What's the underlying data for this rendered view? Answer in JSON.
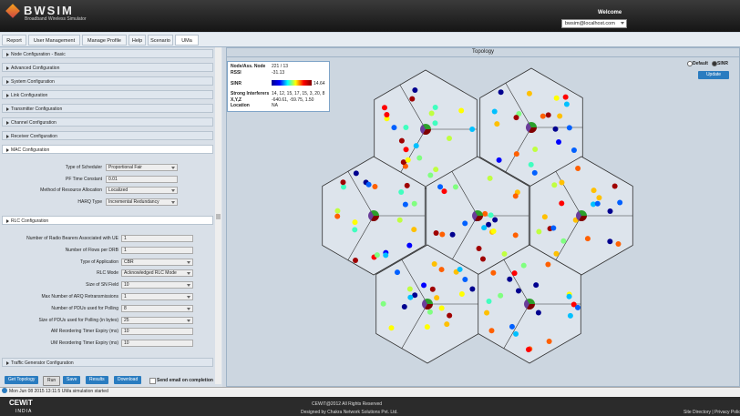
{
  "header": {
    "logo": "BWSIM",
    "subtitle": "Broadband Wireless Simulator",
    "welcome": "Welcome",
    "user": "bwsim@localhost.com"
  },
  "tabs": [
    "Report",
    "User Management",
    "Manage Profile",
    "Help",
    "Scenario",
    "UMa"
  ],
  "sections": [
    "Node Configuration - Basic",
    "Advanced Configuration",
    "System Configuration",
    "Link Configuration",
    "Transmitter Configuration",
    "Channel Configuration",
    "Receiver Configuration"
  ],
  "mac": {
    "title": "MAC Configuration",
    "fields": [
      {
        "label": "Type of Scheduler",
        "value": "Proportional Fair"
      },
      {
        "label": "PF Time Constant",
        "value": "0.01"
      },
      {
        "label": "Method of Resource Allocation",
        "value": "Localized"
      },
      {
        "label": "HARQ Type",
        "value": "Incremental Redundancy"
      }
    ]
  },
  "rlc": {
    "title": "RLC Configuration",
    "fields": [
      {
        "label": "Number of Radio Bearers Associated with UE",
        "value": "1"
      },
      {
        "label": "Number of Flows per DRB",
        "value": "1"
      },
      {
        "label": "Type of Application",
        "value": "CBR"
      },
      {
        "label": "RLC Mode",
        "value": "Acknowledged RLC Mode"
      },
      {
        "label": "Size of SN Field",
        "value": "10"
      },
      {
        "label": "Max Number of ARQ Retransmissions",
        "value": "1"
      },
      {
        "label": "Number of PDUs used for Polling",
        "value": "8"
      },
      {
        "label": "Size of PDUs used for Polling (in bytes)",
        "value": "25"
      },
      {
        "label": "AM Reordering Timer Expiry (ms)",
        "value": "10"
      },
      {
        "label": "UM Reordering Timer Expiry (ms)",
        "value": "10"
      }
    ]
  },
  "traffic": "Traffic Generator Configuration",
  "buttons": [
    "Get Topology",
    "Run",
    "Save",
    "Results",
    "Download"
  ],
  "email": "Send email on completion",
  "topology": {
    "title": "Topology",
    "info": [
      {
        "label": "Node/Ass. Node",
        "value": "221 / 13"
      },
      {
        "label": "RSSI",
        "value": "-31.13"
      },
      {
        "label": "SINR",
        "value": "14.64"
      },
      {
        "label": "Strong Interferers",
        "value": "14, 12, 15, 17, 15, 3, 20, 8"
      },
      {
        "label": "X,Y,Z",
        "value": "-640.61, -59.75, 1.50"
      },
      {
        "label": "Location",
        "value": "NA"
      }
    ],
    "radios": [
      "Default",
      "SINR"
    ],
    "update": "Update"
  },
  "status": "Mon Jun 08 2015 13:11:5 UMa simulation started",
  "footer": {
    "logo": "CEWiT",
    "country": "INDIA",
    "copyright": "CEWiT@2012 All Rights Reserved",
    "designer": "Designed by Chakra Network Solutions Pvt. Ltd.",
    "links": "Site Directory | Privacy Policy"
  }
}
